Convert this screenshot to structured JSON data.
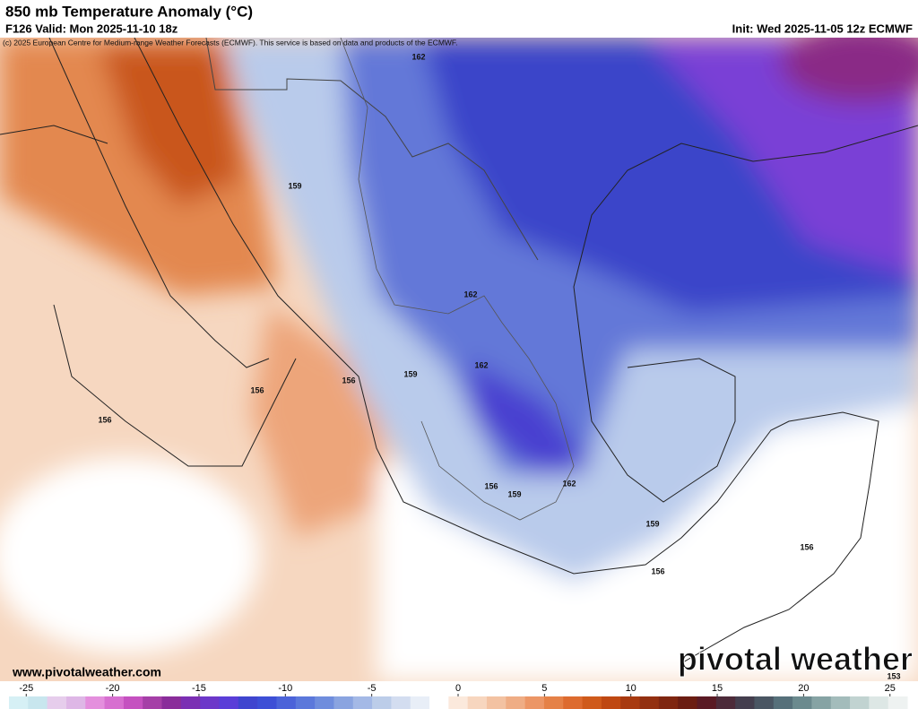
{
  "header": {
    "title": "850 mb Temperature Anomaly (°C)",
    "valid": "F126 Valid: Mon 2025-11-10 18z",
    "init": "Init: Wed 2025-11-05 12z ECMWF",
    "copyright": "(c) 2025 European Centre for Medium-range Weather Forecasts (ECMWF). This service is based on data and products of the ECMWF."
  },
  "map": {
    "contour_labels": [
      "162",
      "159",
      "162",
      "162",
      "159",
      "156",
      "156",
      "156",
      "156",
      "159",
      "162",
      "159",
      "156",
      "156",
      "153"
    ]
  },
  "footer": {
    "website": "www.pivotalweather.com",
    "logo": "pivotal weather"
  },
  "colorbar": {
    "lim": [
      -26,
      26
    ],
    "ticks": [
      -25,
      -20,
      -15,
      -10,
      -5,
      0,
      5,
      10,
      15,
      20,
      25
    ],
    "colors": [
      "#d6f0f5",
      "#c8e6ee",
      "#e6cdec",
      "#deb7e6",
      "#e48fdd",
      "#d76fd0",
      "#c551c0",
      "#a53fa7",
      "#8a2d9a",
      "#7b2fb3",
      "#6c37c9",
      "#5a3ed8",
      "#3f45cf",
      "#3d4fd6",
      "#4b63d9",
      "#5b78db",
      "#6f8ddd",
      "#8aa4e0",
      "#a4b9e6",
      "#bccde9",
      "#d3ddf0",
      "#e8eef7",
      "#ffffff",
      "#fbe9dc",
      "#f7d6bf",
      "#f3c2a2",
      "#efad85",
      "#ec9666",
      "#e58147",
      "#dd6b2f",
      "#cf5a1b",
      "#bf4812",
      "#a83a10",
      "#933010",
      "#7f2610",
      "#6b1d12",
      "#5a1a24",
      "#4d2b3a",
      "#443e4e",
      "#4a5663",
      "#56707a",
      "#6b8a8e",
      "#86a3a4",
      "#a3bcbb",
      "#c1d3d1",
      "#dde7e5",
      "#eef2f1"
    ]
  }
}
